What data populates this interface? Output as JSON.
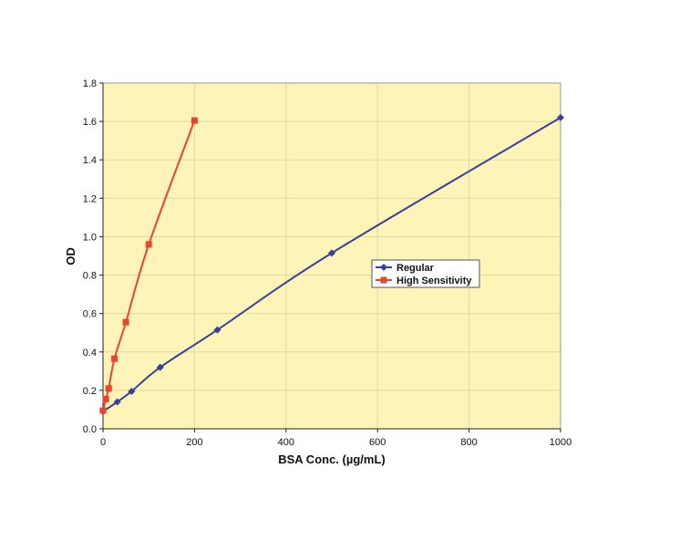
{
  "chart_data": {
    "type": "line",
    "xlabel": "BSA Conc. (µg/mL)",
    "ylabel": "OD",
    "xlim": [
      0,
      1000
    ],
    "ylim": [
      0,
      1.8
    ],
    "xticks": [
      0,
      200,
      400,
      600,
      800,
      1000
    ],
    "yticks": [
      0.0,
      0.2,
      0.4,
      0.6,
      0.8,
      1.0,
      1.2,
      1.4,
      1.6,
      1.8
    ],
    "yticks_labels": [
      "0.0",
      "0.2",
      "0.4",
      "0.6",
      "0.8",
      "1.0",
      "1.2",
      "1.4",
      "1.6",
      "1.8"
    ],
    "grid": true,
    "plot_background": "#fdf4b8",
    "grid_color": "#e2d8a8",
    "legend_position": "center-right",
    "series": [
      {
        "name": "Regular",
        "color": "#3b3f9a",
        "marker": "diamond",
        "x": [
          0,
          31.25,
          62.5,
          125,
          250,
          500,
          1000
        ],
        "y": [
          0.09,
          0.14,
          0.195,
          0.32,
          0.515,
          0.915,
          1.62
        ]
      },
      {
        "name": "High Sensitivity",
        "color": "#e8452e",
        "marker": "square",
        "x": [
          0,
          6.25,
          12.5,
          25,
          50,
          100,
          200
        ],
        "y": [
          0.095,
          0.155,
          0.21,
          0.365,
          0.555,
          0.96,
          1.605
        ]
      }
    ]
  }
}
